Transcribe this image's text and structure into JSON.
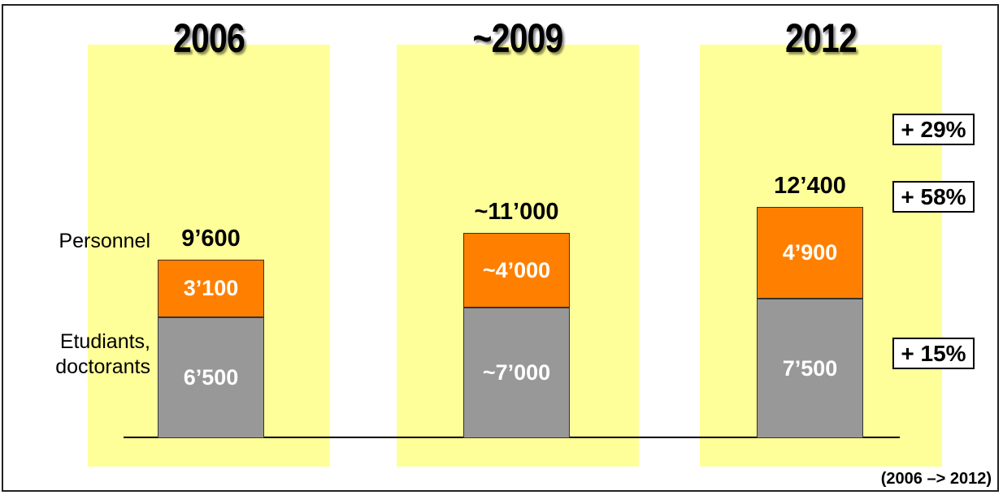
{
  "chart_data": {
    "type": "bar",
    "stacked": true,
    "categories": [
      "2006",
      "~2009",
      "2012"
    ],
    "series": [
      {
        "name": "Etudiants, doctorants",
        "values": [
          6500,
          7000,
          7500
        ],
        "labels": [
          "6’500",
          "~7’000",
          "7’500"
        ],
        "color": "#989898"
      },
      {
        "name": "Personnel",
        "values": [
          3100,
          4000,
          4900
        ],
        "labels": [
          "3’100",
          "~4’000",
          "4’900"
        ],
        "color": "#ff8000"
      }
    ],
    "totals": [
      9600,
      11000,
      12400
    ],
    "total_labels": [
      "9’600",
      "~11’000",
      "12’400"
    ],
    "growth": {
      "total": "+ 29%",
      "personnel": "+ 58%",
      "students": "+ 15%"
    },
    "background_color": "#ffff99",
    "footnote": "(2006 –> 2012)"
  },
  "row_labels": {
    "personnel": "Personnel",
    "students_line1": "Etudiants,",
    "students_line2": "doctorants"
  }
}
